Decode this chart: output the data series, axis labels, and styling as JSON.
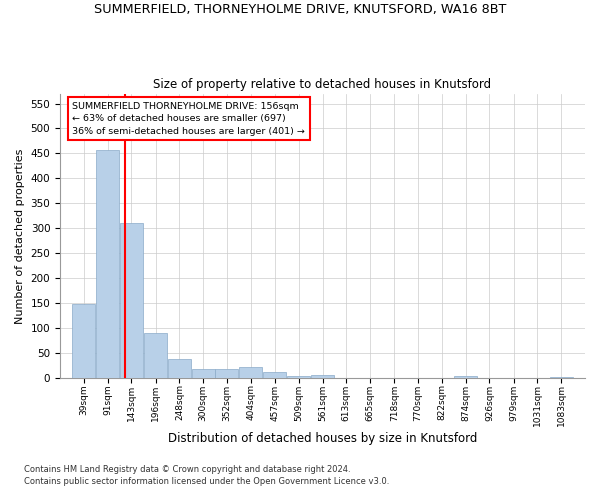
{
  "title": "SUMMERFIELD, THORNEYHOLME DRIVE, KNUTSFORD, WA16 8BT",
  "subtitle": "Size of property relative to detached houses in Knutsford",
  "xlabel": "Distribution of detached houses by size in Knutsford",
  "ylabel": "Number of detached properties",
  "bar_labels": [
    "39sqm",
    "91sqm",
    "143sqm",
    "196sqm",
    "248sqm",
    "300sqm",
    "352sqm",
    "404sqm",
    "457sqm",
    "509sqm",
    "561sqm",
    "613sqm",
    "665sqm",
    "718sqm",
    "770sqm",
    "822sqm",
    "874sqm",
    "926sqm",
    "979sqm",
    "1031sqm",
    "1083sqm"
  ],
  "bar_values": [
    148,
    457,
    311,
    91,
    38,
    19,
    19,
    22,
    12,
    5,
    6,
    1,
    1,
    1,
    1,
    1,
    5,
    1,
    1,
    1,
    3
  ],
  "bar_color": "#b8d0e8",
  "bar_edgecolor": "#8aaac8",
  "bin_starts": [
    39,
    91,
    143,
    196,
    248,
    300,
    352,
    404,
    457,
    509,
    561,
    613,
    665,
    718,
    770,
    822,
    874,
    926,
    979,
    1031,
    1083
  ],
  "bin_width": 52,
  "red_line_x": 156,
  "ylim_max": 570,
  "yticks": [
    0,
    50,
    100,
    150,
    200,
    250,
    300,
    350,
    400,
    450,
    500,
    550
  ],
  "annotation_line1": "SUMMERFIELD THORNEYHOLME DRIVE: 156sqm",
  "annotation_line2": "← 63% of detached houses are smaller (697)",
  "annotation_line3": "36% of semi-detached houses are larger (401) →",
  "footer_line1": "Contains HM Land Registry data © Crown copyright and database right 2024.",
  "footer_line2": "Contains public sector information licensed under the Open Government Licence v3.0.",
  "background_color": "#ffffff",
  "grid_color": "#cccccc"
}
